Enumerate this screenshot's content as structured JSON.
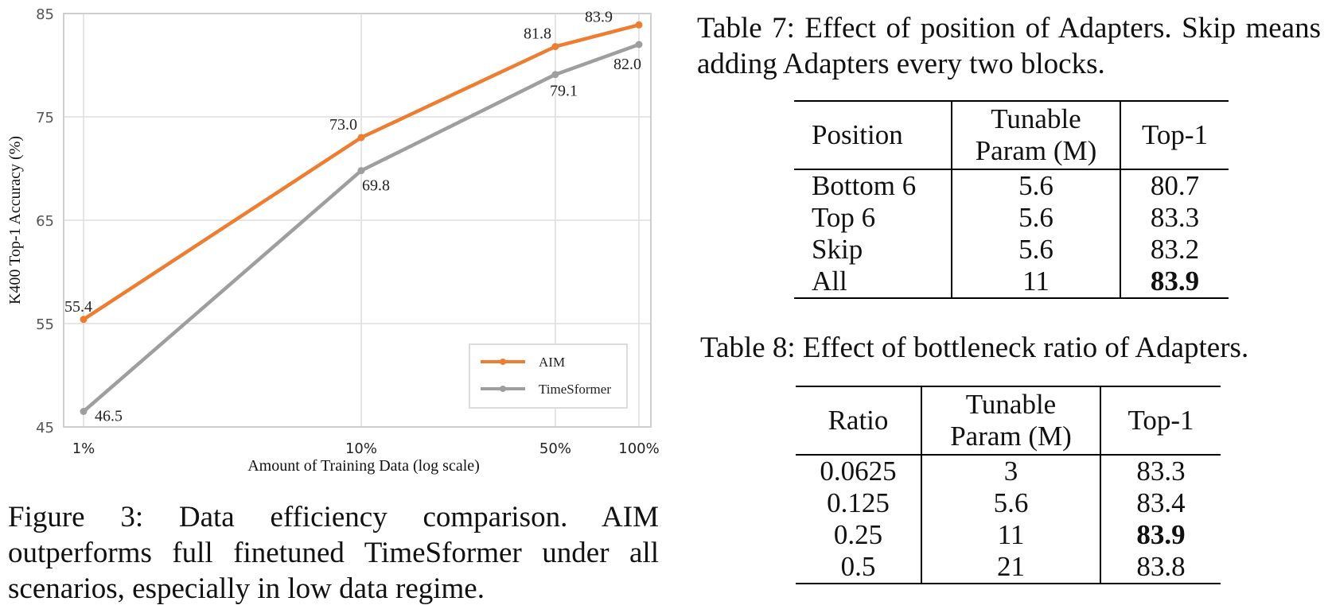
{
  "chart_data": {
    "type": "line",
    "x_scale": "log",
    "x": [
      1,
      10,
      50,
      100
    ],
    "x_tick_labels": [
      "1%",
      "10%",
      "50%",
      "100%"
    ],
    "xlabel": "Amount of Training Data (log scale)",
    "ylabel": "K400 Top-1 Accuracy (%)",
    "ylim": [
      45,
      85
    ],
    "y_ticks": [
      45,
      55,
      65,
      75,
      85
    ],
    "grid": true,
    "legend_position": "bottom-right",
    "series": [
      {
        "name": "AIM",
        "color": "#ed7d31",
        "values": [
          55.4,
          73.0,
          81.8,
          83.9
        ],
        "labels": [
          "55.4",
          "73.0",
          "81.8",
          "83.9"
        ]
      },
      {
        "name": "TimeSformer",
        "color": "#9e9e9e",
        "values": [
          46.5,
          69.8,
          79.1,
          82.0
        ],
        "labels": [
          "46.5",
          "69.8",
          "79.1",
          "82.0"
        ]
      }
    ]
  },
  "figure_caption": "Figure 3: Data efficiency comparison. AIM outperforms full finetuned TimeSformer under all scenarios, especially in low data regime.",
  "table7": {
    "caption": "Table 7: Effect of position of Adapters. Skip means adding Adapters every two blocks.",
    "headers": {
      "col1": "Position",
      "col2_line1": "Tunable",
      "col2_line2": "Param (M)",
      "col3": "Top-1"
    },
    "rows": [
      {
        "position": "Bottom 6",
        "param": "5.6",
        "top1": "80.7"
      },
      {
        "position": "Top 6",
        "param": "5.6",
        "top1": "83.3"
      },
      {
        "position": "Skip",
        "param": "5.6",
        "top1": "83.2"
      },
      {
        "position": "All",
        "param": "11",
        "top1": "83.9"
      }
    ]
  },
  "table8": {
    "caption": "Table 8: Effect of bottleneck ratio of Adapters.",
    "headers": {
      "col1": "Ratio",
      "col2_line1": "Tunable",
      "col2_line2": "Param (M)",
      "col3": "Top-1"
    },
    "rows": [
      {
        "ratio": "0.0625",
        "param": "3",
        "top1": "83.3"
      },
      {
        "ratio": "0.125",
        "param": "5.6",
        "top1": "83.4"
      },
      {
        "ratio": "0.25",
        "param": "11",
        "top1": "83.9"
      },
      {
        "ratio": "0.5",
        "param": "21",
        "top1": "83.8"
      }
    ]
  }
}
